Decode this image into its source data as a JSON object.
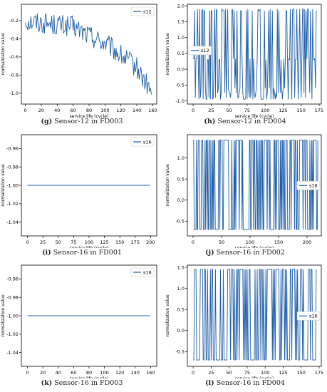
{
  "panels": [
    {
      "caption_letter": "(g)",
      "caption_text": "Sensor-12 in FD003"
    },
    {
      "caption_letter": "(h)",
      "caption_text": "Sensor-12 in FD004"
    },
    {
      "caption_letter": "(i)",
      "caption_text": "Sensor-16 in FD001"
    },
    {
      "caption_letter": "(j)",
      "caption_text": "Sensor-16 in FD002"
    },
    {
      "caption_letter": "(k)",
      "caption_text": "Sensor-16 in FD003"
    },
    {
      "caption_letter": "(l)",
      "caption_text": "Sensor-16 in FD004"
    }
  ],
  "series_color": "#1f5fa8",
  "chart_data": [
    {
      "type": "line",
      "xlabel": "service life (cycle)",
      "ylabel": "normalization value",
      "xlim": [
        -5,
        165
      ],
      "ylim": [
        -1.12,
        -0.02
      ],
      "xticks": [
        0,
        20,
        40,
        60,
        80,
        100,
        120,
        140,
        160
      ],
      "yticks": [
        -1.0,
        -0.8,
        -0.6,
        -0.4,
        -0.2
      ],
      "ytick_labels": [
        "-1.0",
        "-0.8",
        "-0.6",
        "-0.4",
        "-0.2"
      ],
      "legend": "top-right",
      "series": [
        {
          "name": "s12",
          "style": "noisy-decline",
          "n": 160,
          "anchors": [
            [
              0,
              -0.2
            ],
            [
              60,
              -0.27
            ],
            [
              100,
              -0.45
            ],
            [
              140,
              -0.72
            ],
            [
              160,
              -1.02
            ]
          ],
          "noise": 0.12
        }
      ]
    },
    {
      "type": "line",
      "xlabel": "service life (cycle)",
      "ylabel": "normalization value",
      "xlim": [
        -8,
        178
      ],
      "ylim": [
        -1.1,
        2.05
      ],
      "xticks": [
        0,
        25,
        50,
        75,
        100,
        125,
        150,
        175
      ],
      "yticks": [
        -1.0,
        -0.5,
        0.0,
        0.5,
        1.0,
        1.5,
        2.0
      ],
      "ytick_labels": [
        "-1.0",
        "-0.5",
        "0.0",
        "0.5",
        "1.0",
        "1.5",
        "2.0"
      ],
      "legend": "center-left",
      "series": [
        {
          "name": "s12",
          "style": "regime-switch",
          "n": 172,
          "levels": [
            -0.95,
            -0.6,
            0.33,
            1.85,
            1.9,
            -0.75,
            0.3,
            -0.9
          ]
        }
      ]
    },
    {
      "type": "line",
      "xlabel": "service life (cycle)",
      "ylabel": "normalization value",
      "xlim": [
        -10,
        210
      ],
      "ylim": [
        -1.055,
        -0.945
      ],
      "xticks": [
        0,
        25,
        50,
        75,
        100,
        125,
        150,
        175,
        200
      ],
      "yticks": [
        -1.04,
        -1.02,
        -1.0,
        -0.98,
        -0.96
      ],
      "ytick_labels": [
        "-1.04",
        "-1.02",
        "-1.00",
        "-0.98",
        "-0.96"
      ],
      "legend": "top-right",
      "series": [
        {
          "name": "s16",
          "style": "constant",
          "n": 200,
          "value": -1.0
        }
      ]
    },
    {
      "type": "line",
      "xlabel": "service life (cycle)",
      "ylabel": "normalization value",
      "xlim": [
        -10,
        225
      ],
      "ylim": [
        -0.85,
        1.55
      ],
      "xticks": [
        0,
        50,
        100,
        150,
        200
      ],
      "yticks": [
        -0.5,
        0.0,
        0.5,
        1.0
      ],
      "ytick_labels": [
        "-0.5",
        "0.0",
        "0.5",
        "1.0"
      ],
      "legend": "center-right",
      "series": [
        {
          "name": "s16",
          "style": "binary-switch",
          "n": 220,
          "low": -0.7,
          "high": 1.42,
          "p_high": 0.55
        }
      ]
    },
    {
      "type": "line",
      "xlabel": "service life (cycle)",
      "ylabel": "normalization value",
      "xlim": [
        -8,
        168
      ],
      "ylim": [
        -1.055,
        -0.945
      ],
      "xticks": [
        0,
        20,
        40,
        60,
        80,
        100,
        120,
        140,
        160
      ],
      "yticks": [
        -1.04,
        -1.02,
        -1.0,
        -0.98,
        -0.96
      ],
      "ytick_labels": [
        "-1.04",
        "-1.02",
        "-1.00",
        "-0.98",
        "-0.96"
      ],
      "legend": "top-right",
      "series": [
        {
          "name": "s16",
          "style": "constant",
          "n": 160,
          "value": -1.0
        }
      ]
    },
    {
      "type": "line",
      "xlabel": "service life (cycle)",
      "ylabel": "normalization value",
      "xlim": [
        -8,
        178
      ],
      "ylim": [
        -0.85,
        1.55
      ],
      "xticks": [
        0,
        25,
        50,
        75,
        100,
        125,
        150,
        175
      ],
      "yticks": [
        -0.5,
        0.0,
        0.5,
        1.0,
        1.5
      ],
      "ytick_labels": [
        "-0.5",
        "0.0",
        "0.5",
        "1.0",
        "1.5"
      ],
      "legend": "center-right",
      "series": [
        {
          "name": "s16",
          "style": "binary-switch",
          "n": 172,
          "low": -0.7,
          "high": 1.45,
          "p_high": 0.5
        }
      ]
    }
  ]
}
